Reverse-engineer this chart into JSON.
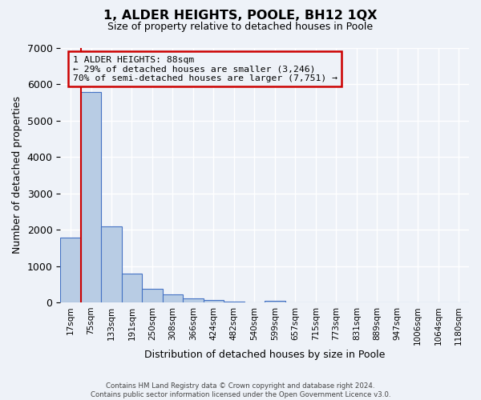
{
  "title": "1, ALDER HEIGHTS, POOLE, BH12 1QX",
  "subtitle": "Size of property relative to detached houses in Poole",
  "xlabel": "Distribution of detached houses by size in Poole",
  "ylabel": "Number of detached properties",
  "bar_values": [
    1780,
    5780,
    2080,
    800,
    370,
    220,
    110,
    60,
    30,
    0,
    50,
    0,
    0,
    0,
    0,
    0,
    0,
    0,
    0,
    0
  ],
  "bin_labels": [
    "17sqm",
    "75sqm",
    "133sqm",
    "191sqm",
    "250sqm",
    "308sqm",
    "366sqm",
    "424sqm",
    "482sqm",
    "540sqm",
    "599sqm",
    "657sqm",
    "715sqm",
    "773sqm",
    "831sqm",
    "889sqm",
    "947sqm",
    "1006sqm",
    "1064sqm",
    "1180sqm"
  ],
  "bar_color": "#b8cce4",
  "bar_edgecolor": "#4472c4",
  "vline_color": "#cc0000",
  "vline_x": 0.5,
  "ylim": [
    0,
    7000
  ],
  "yticks": [
    0,
    1000,
    2000,
    3000,
    4000,
    5000,
    6000,
    7000
  ],
  "annotation_line1": "1 ALDER HEIGHTS: 88sqm",
  "annotation_line2": "← 29% of detached houses are smaller (3,246)",
  "annotation_line3": "70% of semi-detached houses are larger (7,751) →",
  "annotation_box_edgecolor": "#cc0000",
  "footer_line1": "Contains HM Land Registry data © Crown copyright and database right 2024.",
  "footer_line2": "Contains public sector information licensed under the Open Government Licence v3.0.",
  "background_color": "#eef2f8",
  "grid_color": "#ffffff",
  "figsize": [
    6.0,
    5.0
  ],
  "dpi": 100
}
